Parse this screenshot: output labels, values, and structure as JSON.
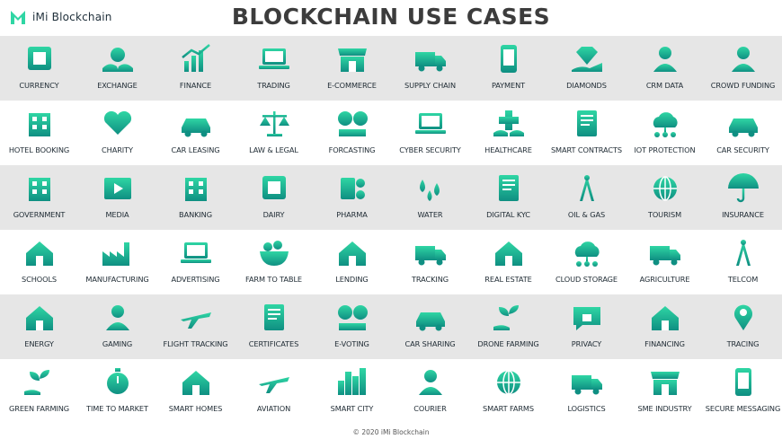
{
  "brand": {
    "name": "iMi Blockchain"
  },
  "title": "BLOCKCHAIN USE CASES",
  "footer": "© 2020 iMi Blockchain",
  "colors": {
    "accent_light": "#2fd6a4",
    "accent_dark": "#0f8f82",
    "row_shade": "#e6e6e6",
    "title": "#3c3c3c"
  },
  "rows": [
    {
      "shaded": true,
      "items": [
        {
          "label": "CURRENCY",
          "icon": "chip-dollar-icon"
        },
        {
          "label": "EXCHANGE",
          "icon": "hands-moneybag-icon"
        },
        {
          "label": "FINANCE",
          "icon": "growth-chart-icon"
        },
        {
          "label": "TRADING",
          "icon": "trading-laptop-icon"
        },
        {
          "label": "E-COMMERCE",
          "icon": "shop-click-icon"
        },
        {
          "label": "SUPPLY CHAIN",
          "icon": "supply-chain-icon"
        },
        {
          "label": "PAYMENT",
          "icon": "phone-card-icon"
        },
        {
          "label": "DIAMONDS",
          "icon": "diamond-hand-icon"
        },
        {
          "label": "CRM DATA",
          "icon": "crm-team-icon"
        },
        {
          "label": "CROWD FUNDING",
          "icon": "crowd-funding-icon"
        }
      ]
    },
    {
      "shaded": false,
      "items": [
        {
          "label": "HOTEL BOOKING",
          "icon": "hotel-icon"
        },
        {
          "label": "CHARITY",
          "icon": "heart-hands-icon"
        },
        {
          "label": "CAR LEASING",
          "icon": "car-lease-icon"
        },
        {
          "label": "LAW & LEGAL",
          "icon": "scales-icon"
        },
        {
          "label": "FORCASTING",
          "icon": "binoculars-dollar-icon"
        },
        {
          "label": "CYBER SECURITY",
          "icon": "laptop-lock-icon"
        },
        {
          "label": "HEALTHCARE",
          "icon": "medical-cross-hands-icon"
        },
        {
          "label": "SMART CONTRACTS",
          "icon": "contract-lock-icon"
        },
        {
          "label": "IOT PROTECTION",
          "icon": "cloud-network-icon"
        },
        {
          "label": "CAR SECURITY",
          "icon": "car-lock-icon"
        }
      ]
    },
    {
      "shaded": true,
      "items": [
        {
          "label": "GOVERNMENT",
          "icon": "capitol-icon"
        },
        {
          "label": "MEDIA",
          "icon": "film-play-icon"
        },
        {
          "label": "BANKING",
          "icon": "bank-building-icon"
        },
        {
          "label": "DAIRY",
          "icon": "milk-carton-icon"
        },
        {
          "label": "PHARMA",
          "icon": "pills-icon"
        },
        {
          "label": "WATER",
          "icon": "water-drops-icon"
        },
        {
          "label": "DIGITAL KYC",
          "icon": "id-document-icon"
        },
        {
          "label": "OIL & GAS",
          "icon": "oil-pump-icon"
        },
        {
          "label": "TOURISM",
          "icon": "globe-plane-icon"
        },
        {
          "label": "INSURANCE",
          "icon": "umbrella-dollar-icon"
        }
      ]
    },
    {
      "shaded": false,
      "items": [
        {
          "label": "SCHOOLS",
          "icon": "school-icon"
        },
        {
          "label": "MANUFACTURING",
          "icon": "factory-icon"
        },
        {
          "label": "ADVERTISING",
          "icon": "megaphone-browser-icon"
        },
        {
          "label": "FARM TO TABLE",
          "icon": "food-bowl-icon"
        },
        {
          "label": "LENDING",
          "icon": "house-hand-icon"
        },
        {
          "label": "TRACKING",
          "icon": "truck-globe-icon"
        },
        {
          "label": "REAL ESTATE",
          "icon": "house-person-icon"
        },
        {
          "label": "CLOUD STORAGE",
          "icon": "cloud-storage-icon"
        },
        {
          "label": "AGRICULTURE",
          "icon": "tractor-icon"
        },
        {
          "label": "TELCOM",
          "icon": "radio-tower-icon"
        }
      ]
    },
    {
      "shaded": true,
      "items": [
        {
          "label": "ENERGY",
          "icon": "solar-house-icon"
        },
        {
          "label": "GAMING",
          "icon": "gamer-headset-icon"
        },
        {
          "label": "FLIGHT TRACKING",
          "icon": "plane-pin-icon"
        },
        {
          "label": "CERTIFICATES",
          "icon": "certificate-icon"
        },
        {
          "label": "E-VOTING",
          "icon": "vote-check-icon"
        },
        {
          "label": "CAR SHARING",
          "icon": "car-share-icon"
        },
        {
          "label": "DRONE FARMING",
          "icon": "drone-plants-icon"
        },
        {
          "label": "PRIVACY",
          "icon": "chat-lock-icon"
        },
        {
          "label": "FINANCING",
          "icon": "warehouse-icon"
        },
        {
          "label": "TRACING",
          "icon": "route-pins-icon"
        }
      ]
    },
    {
      "shaded": false,
      "items": [
        {
          "label": "GREEN FARMING",
          "icon": "sprout-hand-icon"
        },
        {
          "label": "TIME TO MARKET",
          "icon": "stopwatch-code-icon"
        },
        {
          "label": "SMART HOMES",
          "icon": "smart-home-wifi-icon"
        },
        {
          "label": "AVIATION",
          "icon": "airport-plane-icon"
        },
        {
          "label": "SMART CITY",
          "icon": "skyline-icon"
        },
        {
          "label": "COURIER",
          "icon": "courier-scooter-icon"
        },
        {
          "label": "SMART FARMS",
          "icon": "farm-rooster-icon"
        },
        {
          "label": "LOGISTICS",
          "icon": "delivery-truck-icon"
        },
        {
          "label": "SME INDUSTRY",
          "icon": "storefront-icon"
        },
        {
          "label": "SECURE MESSAGING",
          "icon": "phone-message-icon"
        }
      ]
    }
  ]
}
